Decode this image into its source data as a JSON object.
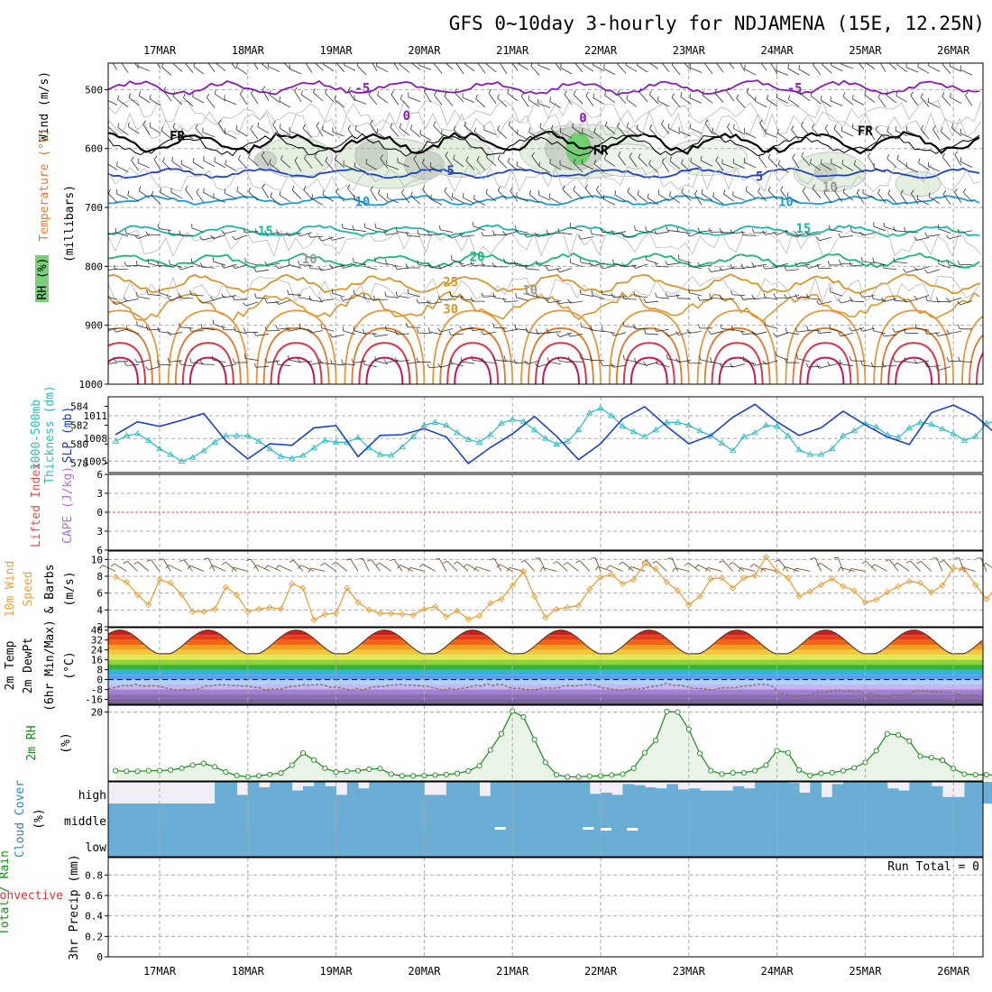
{
  "title": "GFS 0~10day 3-hourly for NDJAMENA (15E, 12.25N)",
  "dates": [
    "17MAR",
    "18MAR",
    "19MAR",
    "20MAR",
    "21MAR",
    "22MAR",
    "23MAR",
    "24MAR",
    "25MAR",
    "26MAR"
  ],
  "colors": {
    "frame": "#000000",
    "grid": "#aaaaaa",
    "thickness": "#2bbcc4",
    "slp": "#1d3fcc",
    "wind": "#e6a23c",
    "barb": "#7a5230",
    "rh": "#1a8a1a",
    "rh_fill": "#eaf4e8",
    "cloud": "#6aaed6",
    "cloud_bg": "#f2eef5",
    "lifted_zero": "#e05050",
    "dewpt": "#8a6a5a"
  },
  "panels": {
    "upper_air": {
      "axis_label": "(millibars)",
      "left_labels": [
        {
          "text": "Wind (m/s)",
          "color": "#000000"
        },
        {
          "text": "Temperature (°C)",
          "color": "#e07a3a"
        },
        {
          "text": "RH (%)",
          "color": "#1a8a1a"
        }
      ],
      "levels": [
        500,
        600,
        700,
        800,
        900,
        1000
      ],
      "ylim": [
        1000,
        455
      ],
      "contour_labels": [
        {
          "text": "-5",
          "day": 2.3,
          "p": 497,
          "color": "#8a1ab8"
        },
        {
          "text": "-5",
          "day": 7.2,
          "p": 497,
          "color": "#8a1ab8"
        },
        {
          "text": "0",
          "day": 2.8,
          "p": 544,
          "color": "#8a1ab8"
        },
        {
          "text": "0",
          "day": 4.8,
          "p": 548,
          "color": "#8a1ab8"
        },
        {
          "text": "FR",
          "day": 0.2,
          "p": 578,
          "color": "#000000"
        },
        {
          "text": "FR",
          "day": 5.0,
          "p": 603,
          "color": "#000000"
        },
        {
          "text": "FR",
          "day": 8.0,
          "p": 570,
          "color": "#000000"
        },
        {
          "text": "5",
          "day": 3.3,
          "p": 637,
          "color": "#1d3fcc"
        },
        {
          "text": "5",
          "day": 6.8,
          "p": 647,
          "color": "#1d3fcc"
        },
        {
          "text": "10",
          "day": 2.3,
          "p": 690,
          "color": "#1a9ad6"
        },
        {
          "text": "10",
          "day": 7.1,
          "p": 690,
          "color": "#1a9ad6"
        },
        {
          "text": "15",
          "day": 1.2,
          "p": 740,
          "color": "#1ab8a8"
        },
        {
          "text": "15",
          "day": 7.3,
          "p": 735,
          "color": "#1ab8a8"
        },
        {
          "text": "20",
          "day": 3.6,
          "p": 783,
          "color": "#1ab878"
        },
        {
          "text": "25",
          "day": 3.3,
          "p": 826,
          "color": "#d8962a"
        },
        {
          "text": "30",
          "day": 3.3,
          "p": 872,
          "color": "#d8962a"
        },
        {
          "text": "10",
          "day": 1.7,
          "p": 787,
          "color": "#999999"
        },
        {
          "text": "10",
          "day": 4.2,
          "p": 840,
          "color": "#999999"
        },
        {
          "text": "10",
          "day": 7.6,
          "p": 665,
          "color": "#999999"
        }
      ]
    },
    "thickness_slp": {
      "left_label_1": "1000-500mb",
      "left_label_2": "Thickness (dm)",
      "right_label": "SLP (mb)",
      "thickness_ticks": [
        578,
        580,
        582,
        584
      ],
      "slp_ticks": [
        1005,
        1008,
        1011
      ],
      "thickness_ylim": [
        577,
        585
      ],
      "slp_ylim": [
        1003.5,
        1013.5
      ]
    },
    "stability": {
      "left_label": "Lifted Index",
      "right_label": "CAPE (J/kg)",
      "ticks": [
        -6,
        -3,
        0,
        3,
        6
      ]
    },
    "wind10m": {
      "label_1": "10m Wind",
      "label_2": "Speed",
      "label_3": "& Barbs",
      "units": "(m/s)",
      "ticks": [
        2,
        4,
        6,
        8,
        10
      ],
      "ylim": [
        2,
        11
      ]
    },
    "temp2m": {
      "label_1": "2m Temp",
      "label_2": "2m DewPt",
      "label_3": "(6hr Min/Max)",
      "units": "(°C)",
      "ticks": [
        40,
        32,
        24,
        16,
        8,
        0,
        -8,
        -16
      ],
      "ylim": [
        -20,
        42
      ]
    },
    "rh2m": {
      "label": "2m RH",
      "units": "(%)",
      "ticks": [
        20
      ],
      "ylim": [
        0,
        22
      ]
    },
    "cloud": {
      "label": "Cloud Cover",
      "units": "(%)",
      "layers": [
        "high",
        "middle",
        "low"
      ]
    },
    "precip": {
      "left_label_1": "Total / Rain",
      "left_label_2": "Convective",
      "axis_label": "3hr Precip (mm)",
      "ticks": [
        "0",
        "0.2",
        "0.4",
        "0.6",
        "0.8"
      ],
      "run_total": "Run Total = 0"
    }
  },
  "chart_data": [
    {
      "type": "line",
      "title": "GFS 0~10day 3-hourly for NDJAMENA (15E, 12.25N)",
      "panel": "1000-500mb Thickness (dm)",
      "series": [
        {
          "name": "1000-500mb Thickness (dm)",
          "x_start_day": -0.5,
          "x_step_day": 0.125,
          "values": [
            580.3,
            580.9,
            581.1,
            580.4,
            579.5,
            578.9,
            578.2,
            578.6,
            579.3,
            580.2,
            580.9,
            580.9,
            580.9,
            580.3,
            579.5,
            578.7,
            578.5,
            578.8,
            579.6,
            580.4,
            580.2,
            580.2,
            580.7,
            579.6,
            578.9,
            578.8,
            579.7,
            580.8,
            582.0,
            582.3,
            582.0,
            581.2,
            580.5,
            580.2,
            581.0,
            582.2,
            582.6,
            582.4,
            581.5,
            580.6,
            580.0,
            580.3,
            581.5,
            583.3,
            583.8,
            583.0,
            581.9,
            581.3,
            580.8,
            581.5,
            582.3,
            582.3,
            582.0,
            581.4,
            580.9,
            580.1,
            579.3,
            580.8,
            581.2,
            582.0,
            581.9,
            580.9,
            579.4,
            578.9,
            578.9,
            579.5,
            580.9,
            581.4,
            582.2,
            581.8,
            581.0,
            580.7,
            581.7,
            582.3,
            582.1,
            581.6,
            581.1,
            580.4,
            580.8,
            582.2,
            582.5,
            582.2,
            581.6,
            580.6,
            580.1,
            580.6,
            581.9,
            582.5,
            581.8,
            581.0,
            580.4
          ]
        }
      ]
    },
    {
      "type": "line",
      "panel": "SLP (mb)",
      "series": [
        {
          "name": "SLP (mb)",
          "x_start_day": -0.5,
          "x_step_day": 0.25,
          "values": [
            1008.5,
            1010.2,
            1009.6,
            1010.4,
            1011.3,
            1007.7,
            1005.3,
            1007.3,
            1007.1,
            1009.4,
            1009.7,
            1005.6,
            1008.4,
            1008.5,
            1009.3,
            1008.2,
            1004.7,
            1006.8,
            1008.6,
            1010.9,
            1008.3,
            1005.2,
            1007.3,
            1010.6,
            1012.2,
            1009.6,
            1007.3,
            1008.4,
            1010.8,
            1012.5,
            1010.2,
            1008.4,
            1009.4,
            1011.6,
            1009.8,
            1008.2,
            1007.2,
            1011.4,
            1012.4,
            1011.0,
            1008.4,
            1011.0,
            1013.0,
            1010.7,
            1007.9,
            1009.5
          ]
        }
      ]
    },
    {
      "type": "line",
      "panel": "10m Wind Speed (m/s)",
      "series": [
        {
          "name": "10m Wind Speed",
          "x_start_day": -0.5,
          "x_step_day": 0.125,
          "values": [
            7.9,
            7.3,
            5.8,
            4.6,
            7.6,
            7.2,
            5.8,
            3.8,
            3.8,
            4.1,
            6.7,
            5.8,
            3.8,
            4.1,
            4.3,
            4.1,
            7.1,
            6.6,
            2.8,
            3.5,
            3.6,
            6.6,
            4.9,
            4.0,
            3.6,
            3.6,
            3.5,
            3.4,
            4.1,
            4.4,
            3.2,
            3.9,
            2.9,
            3.3,
            4.8,
            5.3,
            6.9,
            8.6,
            5.6,
            3.1,
            4.1,
            4.3,
            4.5,
            6.5,
            7.9,
            8.2,
            7.1,
            7.6,
            9.5,
            8.9,
            7.3,
            6.3,
            4.6,
            5.6,
            7.7,
            7.8,
            6.6,
            7.8,
            8.1,
            10.3,
            8.6,
            7.8,
            5.6,
            6.2,
            7.0,
            7.7,
            6.8,
            6.3,
            4.9,
            5.2,
            6.1,
            6.8,
            7.4,
            7.2,
            6.1,
            6.9,
            9.0,
            8.8,
            7.0,
            5.3,
            6.8,
            6.5,
            6.1,
            6.7,
            7.1,
            6.5,
            4.4,
            4.7,
            5.3,
            5.7,
            6.0,
            7.2
          ]
        }
      ]
    },
    {
      "type": "area",
      "panel": "2m Temp / 2m DewPt (°C)",
      "series": [
        {
          "name": "2m Temp",
          "description_range": [
            20,
            40
          ]
        },
        {
          "name": "2m DewPt",
          "description_range": [
            -18,
            0
          ]
        }
      ]
    },
    {
      "type": "area",
      "panel": "2m RH (%)",
      "series": [
        {
          "name": "2m RH",
          "x_start_day": -0.5,
          "x_step_day": 0.125,
          "values": [
            3.0,
            2.8,
            2.8,
            3.0,
            3.0,
            3.2,
            3.7,
            4.6,
            5.1,
            4.1,
            2.6,
            1.6,
            1.2,
            1.5,
            1.9,
            2.3,
            4.6,
            8.1,
            6.1,
            3.7,
            2.6,
            2.8,
            3.0,
            3.4,
            3.6,
            2.0,
            1.5,
            1.5,
            1.6,
            1.7,
            1.9,
            2.2,
            2.9,
            4.4,
            9.0,
            13.7,
            20.3,
            18.6,
            12.0,
            5.4,
            1.8,
            1.2,
            1.2,
            1.4,
            1.5,
            1.7,
            2.0,
            3.7,
            8.2,
            11.8,
            20.2,
            20.0,
            15.0,
            8.0,
            3.0,
            2.0,
            2.4,
            2.4,
            3.0,
            4.6,
            8.8,
            8.2,
            3.2,
            1.6,
            2.2,
            2.4,
            3.0,
            3.8,
            5.4,
            8.8,
            13.7,
            13.4,
            11.6,
            7.2,
            6.8,
            6.0,
            3.6,
            2.0,
            1.8,
            1.8,
            1.7,
            2.2,
            2.6,
            2.2,
            2.4,
            3.8,
            3.8,
            3.0,
            2.6,
            2.6,
            2.6,
            2.4,
            2.2,
            2.4,
            1.9,
            1.9,
            1.2,
            2.1,
            2.2,
            2.2,
            2.6,
            2.8,
            3.3,
            4.0,
            3.9
          ]
        }
      ]
    },
    {
      "type": "bar",
      "panel": "Cloud Cover (%)",
      "layers": [
        "high",
        "middle",
        "low"
      ],
      "series": [
        {
          "name": "high",
          "x_start_day": -0.5,
          "x_step_day": 0.125,
          "values": [
            0,
            0,
            0,
            0,
            0,
            0,
            0,
            0,
            0,
            100,
            100,
            40,
            100,
            75,
            100,
            100,
            60,
            80,
            100,
            80,
            40,
            100,
            70,
            100,
            100,
            100,
            100,
            100,
            40,
            40,
            100,
            100,
            100,
            35,
            100,
            100,
            100,
            100,
            100,
            100,
            100,
            100,
            100,
            45,
            50,
            40,
            90,
            85,
            75,
            70,
            90,
            65,
            70,
            60,
            60,
            60,
            80,
            70,
            100,
            100,
            100,
            95,
            50,
            100,
            30,
            90,
            100,
            100,
            100,
            100,
            70,
            60,
            100,
            100,
            80,
            30,
            30,
            100,
            100,
            100,
            100,
            100,
            100,
            100,
            90,
            100,
            100,
            100,
            100,
            100,
            100,
            100,
            100,
            100
          ]
        },
        {
          "name": "middle",
          "values_note": "near 100% throughout"
        },
        {
          "name": "low",
          "values_note": "near 100% throughout"
        }
      ]
    },
    {
      "type": "bar",
      "panel": "3hr Precip (mm)",
      "ylim": [
        0,
        1
      ],
      "series": [
        {
          "name": "3hr Precip",
          "values": [
            0
          ]
        }
      ],
      "annotation": "Run Total = 0"
    }
  ]
}
